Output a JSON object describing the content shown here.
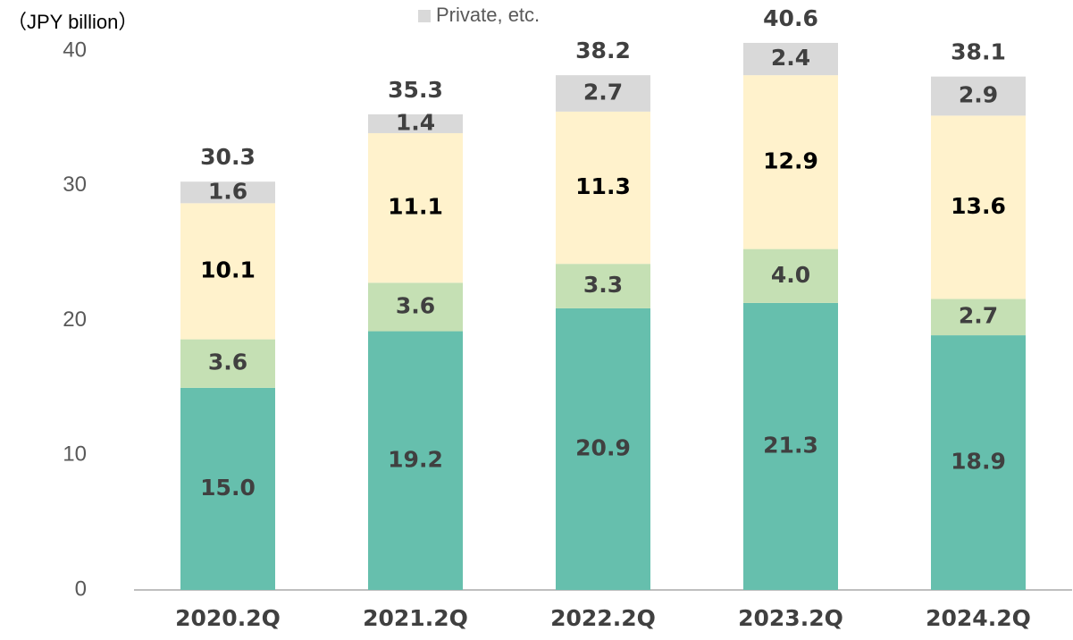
{
  "chart_data": {
    "type": "stacked_bar",
    "y_axis_label": "（JPY billion）",
    "categories": [
      "2020.2Q",
      "2021.2Q",
      "2022.2Q",
      "2023.2Q",
      "2024.2Q"
    ],
    "series": [
      {
        "color": "#66bfad",
        "label_color": "#404040",
        "values": [
          15.0,
          19.2,
          20.9,
          21.3,
          18.9
        ],
        "value_labels": [
          "15.0",
          "19.2",
          "20.9",
          "21.3",
          "18.9"
        ]
      },
      {
        "color": "#c5e0b4",
        "label_color": "#404040",
        "values": [
          3.6,
          3.6,
          3.3,
          4.0,
          2.7
        ],
        "value_labels": [
          "3.6",
          "3.6",
          "3.3",
          "4.0",
          "2.7"
        ]
      },
      {
        "color": "#fff2cc",
        "label_color": "#000000",
        "values": [
          10.1,
          11.1,
          11.3,
          12.9,
          13.6
        ],
        "value_labels": [
          "10.1",
          "11.1",
          "11.3",
          "12.9",
          "13.6"
        ]
      },
      {
        "name": "Private, etc.",
        "color": "#d9d9d9",
        "label_color": "#404040",
        "values": [
          1.6,
          1.4,
          2.7,
          2.4,
          2.9
        ],
        "value_labels": [
          "1.6",
          "1.4",
          "2.7",
          "2.4",
          "2.9"
        ]
      }
    ],
    "totals": [
      30.3,
      35.3,
      38.2,
      40.6,
      38.1
    ],
    "ylim": [
      0,
      40
    ],
    "yticks": [
      0,
      10,
      20,
      30,
      40
    ],
    "grid": false
  }
}
